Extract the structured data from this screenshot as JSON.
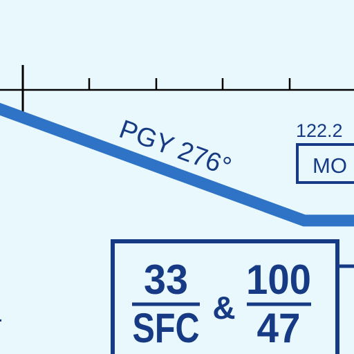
{
  "chart": {
    "route_label": "PGY 276°",
    "frequency": "122.2",
    "station_box_text": "MO",
    "altitudes": {
      "left": {
        "top": "33",
        "bottom": "SFC"
      },
      "separator": "&",
      "right": {
        "top": "100",
        "bottom": "47"
      }
    }
  },
  "colors": {
    "background": "#e8f8fc",
    "route": "#2f73c6",
    "label": "#163a83",
    "tick_line": "#000000"
  }
}
